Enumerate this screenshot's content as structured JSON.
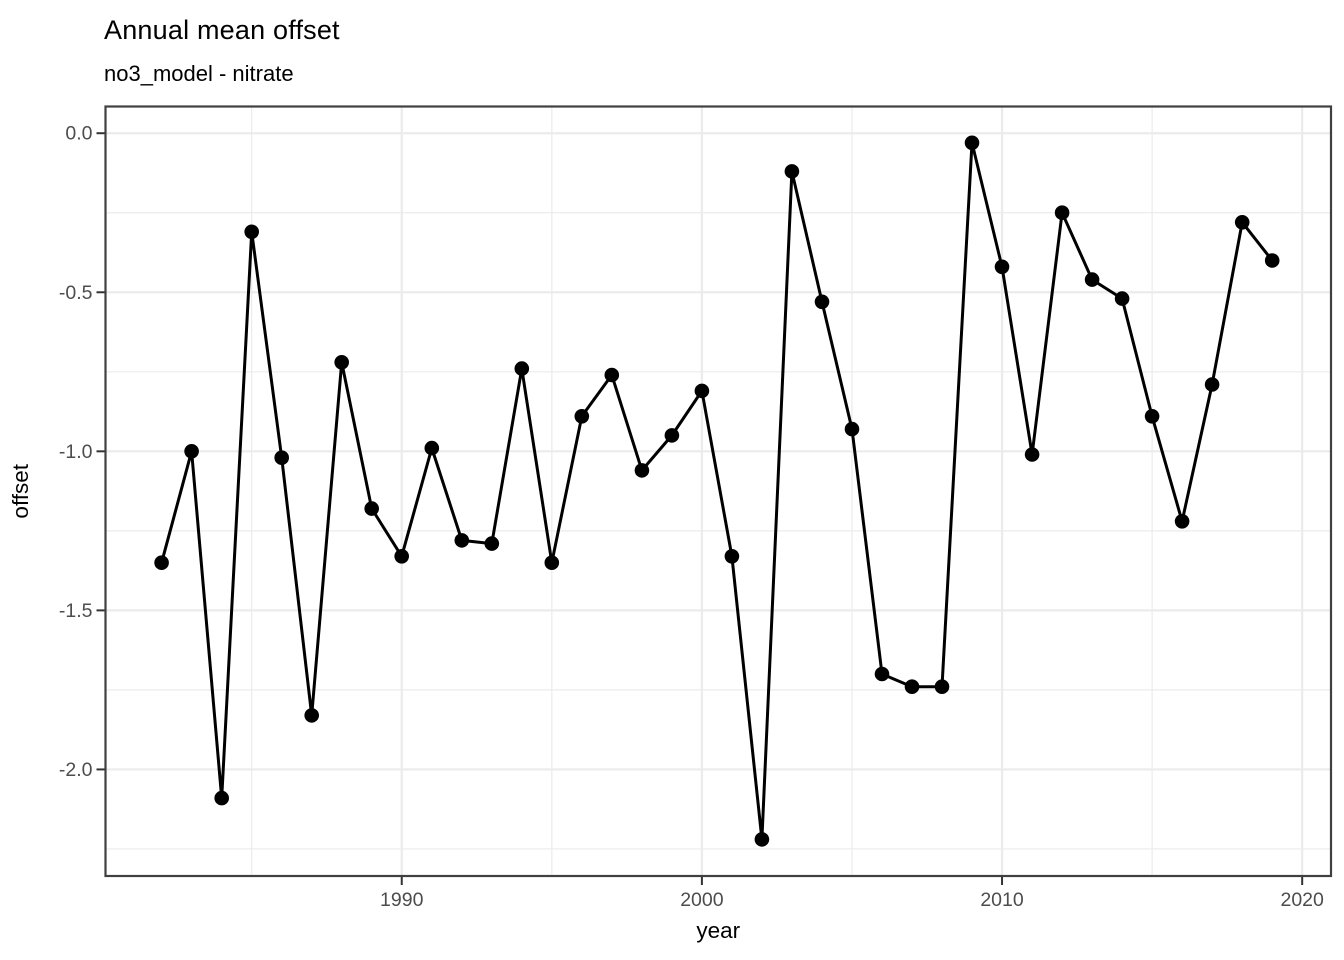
{
  "figure": {
    "title": "Annual mean offset",
    "subtitle": "no3_model - nitrate"
  },
  "chart_data": {
    "type": "line",
    "title": "Annual mean offset",
    "subtitle": "no3_model - nitrate",
    "xlabel": "year",
    "ylabel": "offset",
    "series_name": "annual mean offset (no3_model - nitrate)",
    "x": [
      1982,
      1983,
      1984,
      1985,
      1986,
      1987,
      1988,
      1989,
      1990,
      1991,
      1992,
      1993,
      1994,
      1995,
      1996,
      1997,
      1998,
      1999,
      2000,
      2001,
      2002,
      2003,
      2004,
      2005,
      2006,
      2007,
      2008,
      2009,
      2010,
      2011,
      2012,
      2013,
      2014,
      2015,
      2016,
      2017,
      2018,
      2019
    ],
    "y": [
      -1.35,
      -1.0,
      -2.09,
      -0.31,
      -1.02,
      -1.83,
      -0.72,
      -1.18,
      -1.33,
      -0.99,
      -1.28,
      -1.29,
      -0.74,
      -1.35,
      -0.89,
      -0.76,
      -1.06,
      -0.95,
      -0.81,
      -1.33,
      -2.22,
      -0.12,
      -0.53,
      -0.93,
      -1.7,
      -1.74,
      -1.74,
      -0.03,
      -0.42,
      -1.01,
      -0.25,
      -0.46,
      -0.52,
      -0.89,
      -1.22,
      -0.79,
      -0.28,
      -0.4
    ],
    "xlim": [
      1980.13,
      2020.96
    ],
    "ylim": [
      -2.335,
      0.084
    ],
    "x_major_ticks": [
      1990,
      2000,
      2010,
      2020
    ],
    "x_tick_labels": [
      "1990",
      "2000",
      "2010",
      "2020"
    ],
    "x_minor_ticks": [
      1985,
      1995,
      2005,
      2015
    ],
    "y_major_ticks": [
      0,
      -0.5,
      -1,
      -1.5,
      -2
    ],
    "y_tick_labels": [
      "0.0",
      "-0.5",
      "-1.0",
      "-1.5",
      "-2.0"
    ],
    "y_minor_ticks": [
      -0.25,
      -0.75,
      -1.25,
      -1.75,
      -2.25
    ],
    "grid": true,
    "legend": "none",
    "point_marker": "filled-circle",
    "colors": {
      "line": "#000000",
      "point": "#000000",
      "grid_major": "#ebebeb",
      "grid_minor": "#ebebeb",
      "panel_border": "#404040",
      "tick": "#333333",
      "tick_label": "#4d4d4d",
      "axis_title": "#000000",
      "background": "#ffffff"
    }
  }
}
